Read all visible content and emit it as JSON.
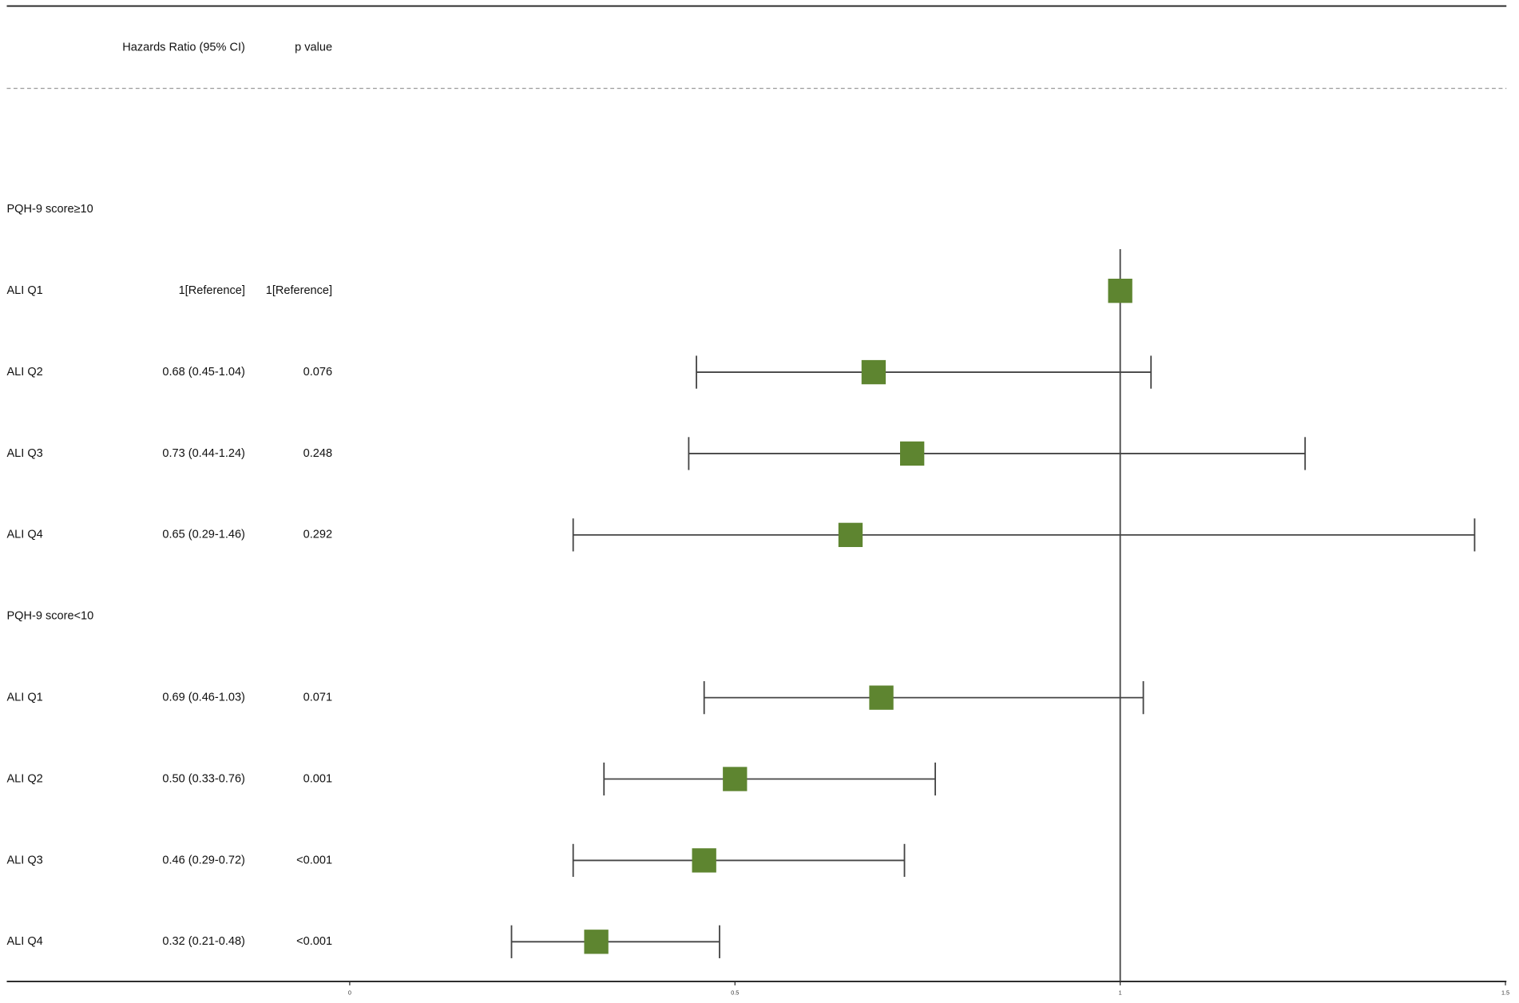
{
  "chart_data": {
    "type": "forest",
    "columns": [
      "Hazards Ratio (95% CI)",
      "p value"
    ],
    "rows": [
      {
        "label": "PQH-9 score≥10"
      },
      {
        "label": "ALI Q1",
        "hr": "1[Reference]",
        "p": "1[Reference]",
        "estimate": 1
      },
      {
        "label": "ALI Q2",
        "hr": "0.68 (0.45-1.04)",
        "p": "0.076",
        "estimate": 0.68,
        "lower": 0.45,
        "upper": 1.04
      },
      {
        "label": "ALI Q3",
        "hr": "0.73 (0.44-1.24)",
        "p": "0.248",
        "estimate": 0.73,
        "lower": 0.44,
        "upper": 1.24
      },
      {
        "label": "ALI Q4",
        "hr": "0.65 (0.29-1.46)",
        "p": "0.292",
        "estimate": 0.65,
        "lower": 0.29,
        "upper": 1.46
      },
      {
        "label": "PQH-9 score<10"
      },
      {
        "label": "ALI Q1",
        "hr": "0.69 (0.46-1.03)",
        "p": "0.071",
        "estimate": 0.69,
        "lower": 0.46,
        "upper": 1.03
      },
      {
        "label": "ALI Q2",
        "hr": "0.50 (0.33-0.76)",
        "p": "0.001",
        "estimate": 0.5,
        "lower": 0.33,
        "upper": 0.76
      },
      {
        "label": "ALI Q3",
        "hr": "0.46 (0.29-0.72)",
        "p": "<0.001",
        "estimate": 0.46,
        "lower": 0.29,
        "upper": 0.72
      },
      {
        "label": "ALI Q4",
        "hr": "0.32 (0.21-0.48)",
        "p": "<0.001",
        "estimate": 0.32,
        "lower": 0.21,
        "upper": 0.48
      }
    ],
    "xlim": [
      0,
      1.5
    ],
    "xticks": [
      0,
      0.5,
      1,
      1.5
    ],
    "ref_line": 1,
    "color": "#5e8530"
  }
}
